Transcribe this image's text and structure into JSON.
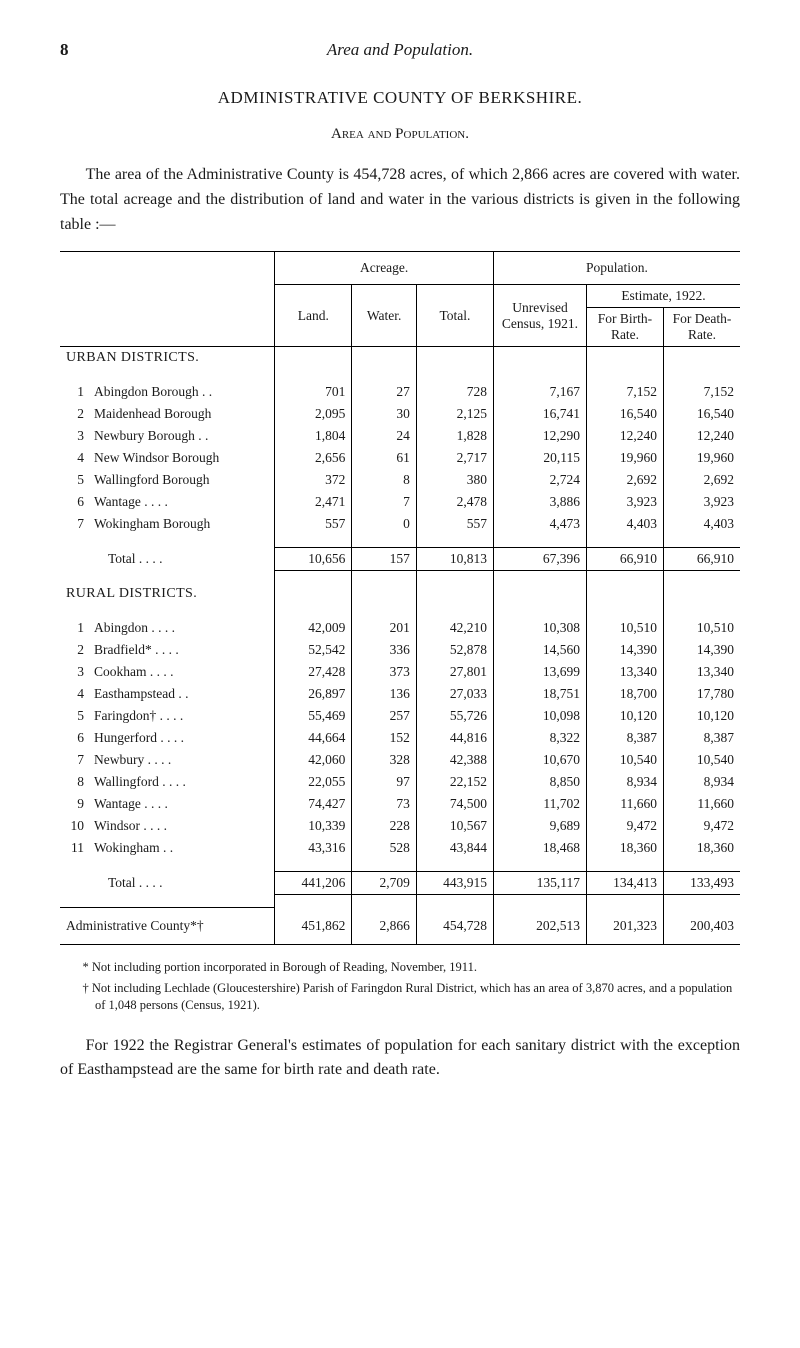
{
  "page_number": "8",
  "running_title": "Area and Population.",
  "title_main": "ADMINISTRATIVE COUNTY OF BERKSHIRE.",
  "title_sub": "Area and Population.",
  "intro_paragraph": "The area of the Administrative County is 454,728 acres, of which 2,866 acres are covered with water. The total acreage and the distribution of land and water in the various districts is given in the following table :—",
  "table": {
    "head": {
      "acreage": "Acreage.",
      "population": "Population.",
      "land": "Land.",
      "water": "Water.",
      "total": "Total.",
      "unrevised": "Unrevised Census, 1921.",
      "estimate": "Estimate, 1922.",
      "for_birth": "For Birth- Rate.",
      "for_death": "For Death- Rate."
    },
    "urban_label": "URBAN DISTRICTS.",
    "urban_rows": [
      {
        "idx": "1",
        "name": "Abingdon Borough . .",
        "land": "701",
        "water": "27",
        "total": "728",
        "census": "7,167",
        "birth": "7,152",
        "death": "7,152"
      },
      {
        "idx": "2",
        "name": "Maidenhead Borough",
        "land": "2,095",
        "water": "30",
        "total": "2,125",
        "census": "16,741",
        "birth": "16,540",
        "death": "16,540"
      },
      {
        "idx": "3",
        "name": "Newbury Borough . .",
        "land": "1,804",
        "water": "24",
        "total": "1,828",
        "census": "12,290",
        "birth": "12,240",
        "death": "12,240"
      },
      {
        "idx": "4",
        "name": "New Windsor Borough",
        "land": "2,656",
        "water": "61",
        "total": "2,717",
        "census": "20,115",
        "birth": "19,960",
        "death": "19,960"
      },
      {
        "idx": "5",
        "name": "Wallingford Borough",
        "land": "372",
        "water": "8",
        "total": "380",
        "census": "2,724",
        "birth": "2,692",
        "death": "2,692"
      },
      {
        "idx": "6",
        "name": "Wantage      . .      . .",
        "land": "2,471",
        "water": "7",
        "total": "2,478",
        "census": "3,886",
        "birth": "3,923",
        "death": "3,923"
      },
      {
        "idx": "7",
        "name": "Wokingham Borough",
        "land": "557",
        "water": "0",
        "total": "557",
        "census": "4,473",
        "birth": "4,403",
        "death": "4,403"
      }
    ],
    "urban_total_label": "Total      . .      . .",
    "urban_total": {
      "land": "10,656",
      "water": "157",
      "total": "10,813",
      "census": "67,396",
      "birth": "66,910",
      "death": "66,910"
    },
    "rural_label": "RURAL DISTRICTS.",
    "rural_rows": [
      {
        "idx": "1",
        "name": "Abingdon      . .      . .",
        "land": "42,009",
        "water": "201",
        "total": "42,210",
        "census": "10,308",
        "birth": "10,510",
        "death": "10,510"
      },
      {
        "idx": "2",
        "name": "Bradfield*      . .      . .",
        "land": "52,542",
        "water": "336",
        "total": "52,878",
        "census": "14,560",
        "birth": "14,390",
        "death": "14,390"
      },
      {
        "idx": "3",
        "name": "Cookham      . .      . .",
        "land": "27,428",
        "water": "373",
        "total": "27,801",
        "census": "13,699",
        "birth": "13,340",
        "death": "13,340"
      },
      {
        "idx": "4",
        "name": "Easthampstead      . .",
        "land": "26,897",
        "water": "136",
        "total": "27,033",
        "census": "18,751",
        "birth": "18,700",
        "death": "17,780"
      },
      {
        "idx": "5",
        "name": "Faringdon†      . .      . .",
        "land": "55,469",
        "water": "257",
        "total": "55,726",
        "census": "10,098",
        "birth": "10,120",
        "death": "10,120"
      },
      {
        "idx": "6",
        "name": "Hungerford      . .      . .",
        "land": "44,664",
        "water": "152",
        "total": "44,816",
        "census": "8,322",
        "birth": "8,387",
        "death": "8,387"
      },
      {
        "idx": "7",
        "name": "Newbury      . .      . .",
        "land": "42,060",
        "water": "328",
        "total": "42,388",
        "census": "10,670",
        "birth": "10,540",
        "death": "10,540"
      },
      {
        "idx": "8",
        "name": "Wallingford . .      . .",
        "land": "22,055",
        "water": "97",
        "total": "22,152",
        "census": "8,850",
        "birth": "8,934",
        "death": "8,934"
      },
      {
        "idx": "9",
        "name": "Wantage      . .      . .",
        "land": "74,427",
        "water": "73",
        "total": "74,500",
        "census": "11,702",
        "birth": "11,660",
        "death": "11,660"
      },
      {
        "idx": "10",
        "name": "Windsor      . .      . .",
        "land": "10,339",
        "water": "228",
        "total": "10,567",
        "census": "9,689",
        "birth": "9,472",
        "death": "9,472"
      },
      {
        "idx": "11",
        "name": "Wokingham      . .",
        "land": "43,316",
        "water": "528",
        "total": "43,844",
        "census": "18,468",
        "birth": "18,360",
        "death": "18,360"
      }
    ],
    "rural_total_label": "Total      . .      . .",
    "rural_total": {
      "land": "441,206",
      "water": "2,709",
      "total": "443,915",
      "census": "135,117",
      "birth": "134,413",
      "death": "133,493"
    },
    "admin_label": "Administrative County*†",
    "admin_total": {
      "land": "451,862",
      "water": "2,866",
      "total": "454,728",
      "census": "202,513",
      "birth": "201,323",
      "death": "200,403"
    }
  },
  "footnote_star": "* Not including portion incorporated in Borough of Reading, November, 1911.",
  "footnote_dagger": "† Not including Lechlade (Gloucestershire) Parish of Faringdon Rural District, which has an area of 3,870 acres, and a population of 1,048 persons (Census, 1921).",
  "closing_paragraph": "For 1922 the Registrar General's estimates of population for each sanitary district with the exception of Easthampstead are the same for birth rate and death rate."
}
